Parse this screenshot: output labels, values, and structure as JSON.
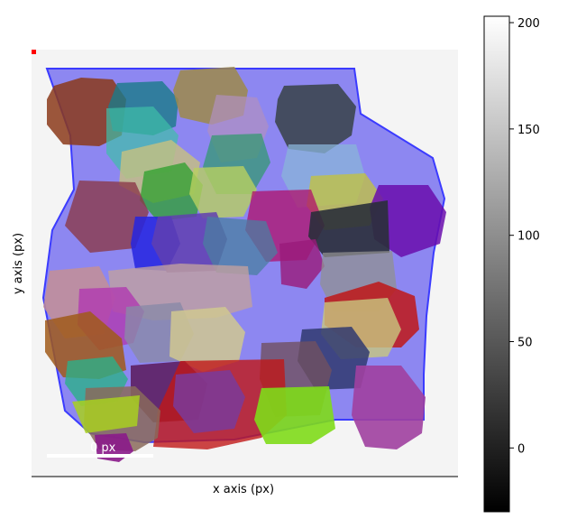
{
  "chart_data": {
    "type": "heatmap",
    "xlabel": "x axis (px)",
    "ylabel": "y axis (px)",
    "scalebar_label": "0 px",
    "colorbar": {
      "cmap": "gray",
      "range": [
        -30,
        203
      ],
      "ticks": [
        0,
        50,
        100,
        150,
        200
      ],
      "tick_labels": [
        "0",
        "50",
        "100",
        "150",
        "200"
      ]
    },
    "background_image": "light gray grayscale image of overlapping blob-shaped objects",
    "region_colors": [
      "#2b2be0",
      "#a01818",
      "#8b3a1a",
      "#1a8a8a",
      "#2ca02c",
      "#b03ab0",
      "#c4c43a",
      "#6a0dad",
      "#7fff00",
      "#9e7a5a"
    ],
    "annotations": {
      "outer_hull": {
        "color": "#3b3bff",
        "label": "large blue region outline"
      },
      "red_marker": {
        "color": "#ff0000"
      }
    }
  }
}
